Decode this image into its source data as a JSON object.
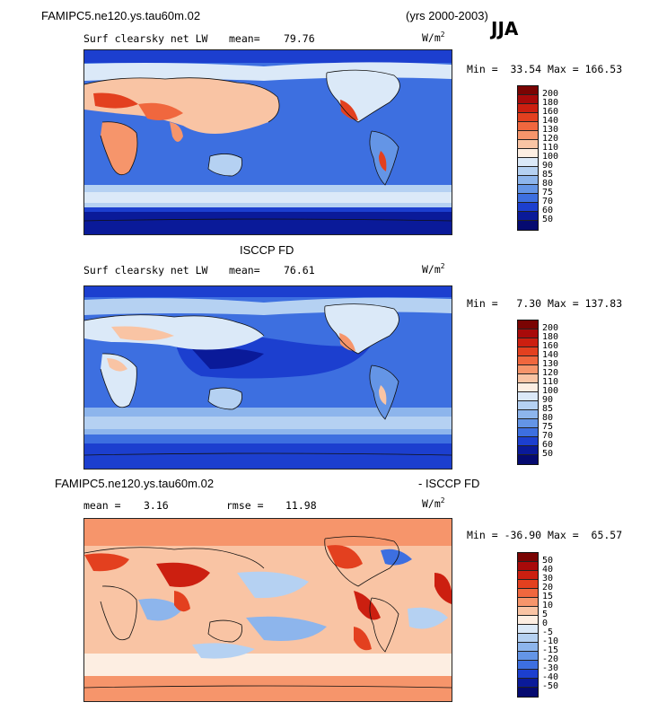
{
  "header": {
    "model": "FAMIPC5.ne120.ys.tau60m.02",
    "years": "(yrs 2000-2003)",
    "season": "JJA"
  },
  "panels": [
    {
      "name": "model",
      "variable": "Surf clearsky net LW",
      "stat_label": "mean=",
      "stat_value": "79.76",
      "units": "W/m",
      "units_exp": "2",
      "min_label": "Min =",
      "min": "33.54",
      "max_label": "Max =",
      "max": "166.53",
      "levels": [
        "200",
        "180",
        "160",
        "140",
        "130",
        "120",
        "110",
        "100",
        "90",
        "85",
        "80",
        "75",
        "70",
        "60",
        "50"
      ]
    },
    {
      "name": "obs",
      "title": "ISCCP FD",
      "variable": "Surf clearsky net LW",
      "stat_label": "mean=",
      "stat_value": "76.61",
      "units": "W/m",
      "units_exp": "2",
      "min_label": "Min =",
      "min": "7.30",
      "max_label": "Max =",
      "max": "137.83",
      "levels": [
        "200",
        "180",
        "160",
        "140",
        "130",
        "120",
        "110",
        "100",
        "90",
        "85",
        "80",
        "75",
        "70",
        "60",
        "50"
      ]
    },
    {
      "name": "diff",
      "title_left": "FAMIPC5.ne120.ys.tau60m.02",
      "title_right": "- ISCCP FD",
      "stat_label": "mean =",
      "stat_value": "3.16",
      "rmse_label": "rmse =",
      "rmse_value": "11.98",
      "units": "W/m",
      "units_exp": "2",
      "min_label": "Min =",
      "min": "-36.90",
      "max_label": "Max =",
      "max": "65.57",
      "levels": [
        "50",
        "40",
        "30",
        "20",
        "15",
        "10",
        "5",
        "0",
        "-5",
        "-10",
        "-15",
        "-20",
        "-30",
        "-40",
        "-50"
      ]
    }
  ],
  "colors": {
    "abs_scale": [
      "#7a0403",
      "#a80a0a",
      "#cc1f10",
      "#e3401f",
      "#f0673e",
      "#f6956b",
      "#f9c4a4",
      "#fdeee2",
      "#dbe9f8",
      "#b5d1f2",
      "#8db5ec",
      "#6495e6",
      "#3d6fe0",
      "#1c3fcf",
      "#0a1a99",
      "#050a70"
    ],
    "diff_scale": [
      "#7a0403",
      "#a80a0a",
      "#cc1f10",
      "#e3401f",
      "#f0673e",
      "#f6956b",
      "#f9c4a4",
      "#fdeee2",
      "#dbe9f8",
      "#b5d1f2",
      "#8db5ec",
      "#6495e6",
      "#3d6fe0",
      "#1c3fcf",
      "#0a1a99",
      "#050a70"
    ]
  }
}
